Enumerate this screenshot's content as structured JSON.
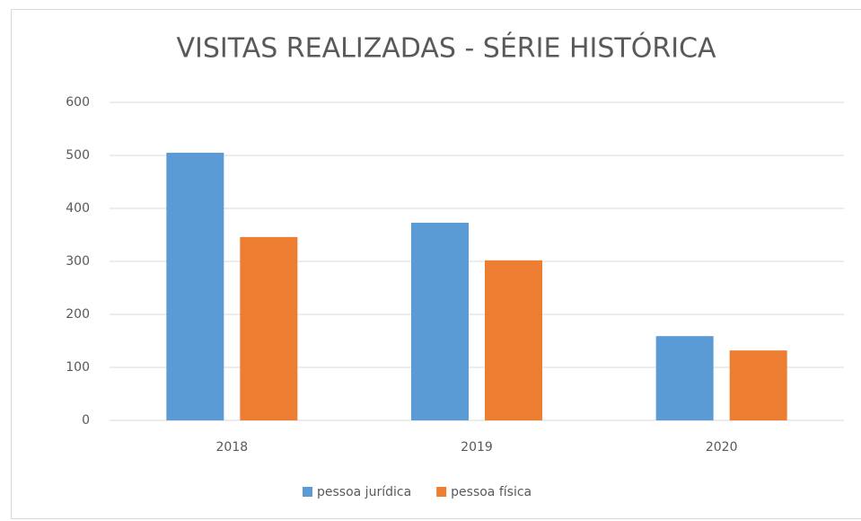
{
  "chart_data": {
    "type": "bar",
    "title": "VISITAS REALIZADAS - SÉRIE HISTÓRICA",
    "categories": [
      "2018",
      "2019",
      "2020"
    ],
    "series": [
      {
        "name": "pessoa jurídica",
        "color": "#5b9bd5",
        "values": [
          505,
          373,
          159
        ]
      },
      {
        "name": "pessoa física",
        "color": "#ed7d31",
        "values": [
          346,
          302,
          132
        ]
      }
    ],
    "ylim": [
      0,
      600
    ],
    "yticks": [
      0,
      100,
      200,
      300,
      400,
      500,
      600
    ],
    "grid": true,
    "legend": "bottom"
  }
}
